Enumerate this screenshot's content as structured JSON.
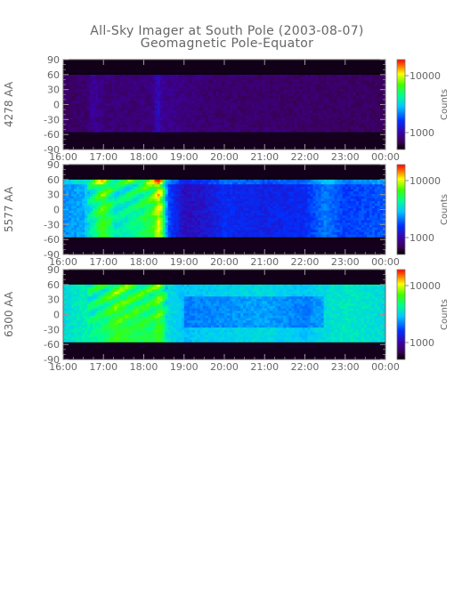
{
  "title": "All-Sky Imager at South Pole (2003-08-07)",
  "subtitle": "Geomagnetic Pole-Equator",
  "colorbar": {
    "label": "Counts",
    "ticks": [
      "10000",
      "1000"
    ]
  },
  "chart_data": [
    {
      "type": "heatmap",
      "ylabel": "4278 AA",
      "xticks": [
        "16:00",
        "17:00",
        "18:00",
        "19:00",
        "20:00",
        "21:00",
        "22:00",
        "23:00",
        "00:00"
      ],
      "yticks": [
        "90",
        "60",
        "30",
        "0",
        "-30",
        "-60",
        "-90"
      ],
      "ylim": [
        -90,
        90
      ],
      "xlim": [
        "16:00",
        "00:00"
      ],
      "data_band": [
        -55,
        60
      ],
      "colorbar_ticks": [
        10000,
        1000
      ],
      "colorbar_label": "Counts",
      "profile": {
        "times": [
          16.0,
          16.6,
          16.75,
          17.0,
          18.2,
          18.35,
          18.45,
          19.5,
          22.0,
          24.0
        ],
        "level": [
          0.1,
          0.12,
          0.17,
          0.13,
          0.13,
          0.22,
          0.16,
          0.12,
          0.11,
          0.1
        ]
      }
    },
    {
      "type": "heatmap",
      "ylabel": "5577 AA",
      "xticks": [
        "16:00",
        "17:00",
        "18:00",
        "19:00",
        "20:00",
        "21:00",
        "22:00",
        "23:00",
        "00:00"
      ],
      "yticks": [
        "90",
        "60",
        "30",
        "0",
        "-30",
        "-60",
        "-90"
      ],
      "ylim": [
        -90,
        90
      ],
      "xlim": [
        "16:00",
        "00:00"
      ],
      "data_band": [
        -55,
        60
      ],
      "colorbar_ticks": [
        10000,
        1000
      ],
      "colorbar_label": "Counts",
      "profile": {
        "times": [
          16.0,
          16.5,
          16.8,
          17.0,
          17.3,
          17.8,
          18.2,
          18.4,
          18.6,
          19.0,
          19.5,
          20.0,
          21.0,
          22.0,
          22.5,
          23.0,
          24.0
        ],
        "level": [
          0.42,
          0.45,
          0.62,
          0.72,
          0.55,
          0.6,
          0.68,
          0.85,
          0.35,
          0.22,
          0.24,
          0.3,
          0.28,
          0.3,
          0.4,
          0.33,
          0.36
        ]
      }
    },
    {
      "type": "heatmap",
      "ylabel": "6300 AA",
      "xticks": [
        "16:00",
        "17:00",
        "18:00",
        "19:00",
        "20:00",
        "21:00",
        "22:00",
        "23:00",
        "00:00"
      ],
      "yticks": [
        "90",
        "60",
        "30",
        "0",
        "-30",
        "-60",
        "-90"
      ],
      "ylim": [
        -90,
        90
      ],
      "xlim": [
        "16:00",
        "00:00"
      ],
      "data_band": [
        -55,
        60
      ],
      "colorbar_ticks": [
        10000,
        1000
      ],
      "colorbar_label": "Counts",
      "profile": {
        "times": [
          16.0,
          16.5,
          17.0,
          17.3,
          17.8,
          18.2,
          18.4,
          18.6,
          19.0,
          20.0,
          21.0,
          22.0,
          22.5,
          23.0,
          24.0
        ],
        "level": [
          0.52,
          0.56,
          0.62,
          0.7,
          0.66,
          0.64,
          0.72,
          0.52,
          0.48,
          0.5,
          0.52,
          0.48,
          0.52,
          0.55,
          0.52
        ]
      }
    }
  ]
}
